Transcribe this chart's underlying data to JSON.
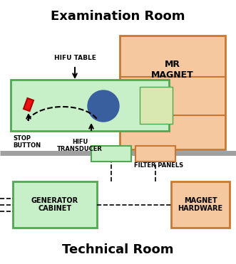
{
  "title_exam": "Examination Room",
  "title_tech": "Technical Room",
  "bg_color": "#ffffff",
  "green_light": "#c8f0c8",
  "green_border": "#50a850",
  "orange_light": "#f5c8a0",
  "orange_border": "#c87832",
  "yellow_green": "#d8e8b0",
  "gray_line": "#a0a0a0",
  "hifu_table_label": "HIFU TABLE",
  "stop_button_label": "STOP\nBUTTON",
  "hifu_transducer_label": "HIFU\nTRANSDUCER",
  "mr_magnet_label": "MR\nMAGNET",
  "filter_panels_label": "FILTER PANELS",
  "generator_cabinet_label": "GENERATOR\nCABINET",
  "magnet_hardware_label": "MAGNET\nHARDWARE"
}
